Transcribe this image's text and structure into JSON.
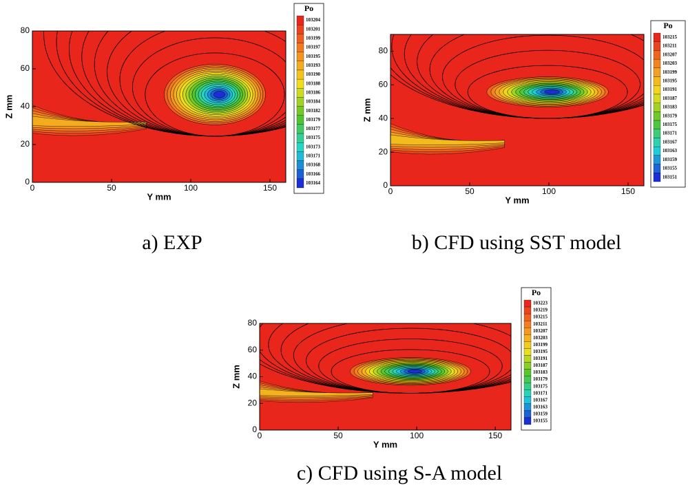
{
  "chart_data": [
    {
      "type": "contour",
      "caption": "a) EXP",
      "xlabel": "Y mm",
      "ylabel": "Z mm",
      "xlim": [
        0,
        160
      ],
      "ylim": [
        0,
        80
      ],
      "xticks": [
        0,
        50,
        100,
        150
      ],
      "yticks": [
        0,
        20,
        40,
        60,
        80
      ],
      "legend_title": "Po",
      "levels": [
        103204,
        103201,
        103199,
        103197,
        103195,
        103193,
        103190,
        103188,
        103186,
        103184,
        103182,
        103179,
        103177,
        103175,
        103173,
        103171,
        103168,
        103166,
        103164
      ],
      "colormap": [
        "#e8261c",
        "#f58a1f",
        "#f3e11a",
        "#52c42a",
        "#1fd8d8",
        "#1a2fd8"
      ]
    },
    {
      "type": "contour",
      "caption": "b) CFD using SST model",
      "xlabel": "Y mm",
      "ylabel": "Z mm",
      "xlim": [
        0,
        160
      ],
      "ylim": [
        0,
        90
      ],
      "xticks": [
        0,
        50,
        100,
        150
      ],
      "yticks": [
        0,
        20,
        40,
        60,
        80
      ],
      "legend_title": "Po",
      "levels": [
        103215,
        103211,
        103207,
        103203,
        103199,
        103195,
        103191,
        103187,
        103183,
        103179,
        103175,
        103171,
        103167,
        103163,
        103159,
        103155,
        103151
      ],
      "colormap": [
        "#e8261c",
        "#f58a1f",
        "#f3e11a",
        "#52c42a",
        "#1fd8d8",
        "#1a2fd8"
      ]
    },
    {
      "type": "contour",
      "caption": "c) CFD using S-A model",
      "xlabel": "Y mm",
      "ylabel": "Z mm",
      "xlim": [
        0,
        160
      ],
      "ylim": [
        0,
        80
      ],
      "xticks": [
        0,
        50,
        100,
        150
      ],
      "yticks": [
        0,
        20,
        40,
        60,
        80
      ],
      "legend_title": "Po",
      "levels": [
        103223,
        103219,
        103215,
        103211,
        103207,
        103203,
        103199,
        103195,
        103191,
        103187,
        103183,
        103179,
        103175,
        103171,
        103167,
        103163,
        103159,
        103155
      ],
      "colormap": [
        "#e8261c",
        "#f58a1f",
        "#f3e11a",
        "#52c42a",
        "#1fd8d8",
        "#1a2fd8"
      ]
    }
  ]
}
